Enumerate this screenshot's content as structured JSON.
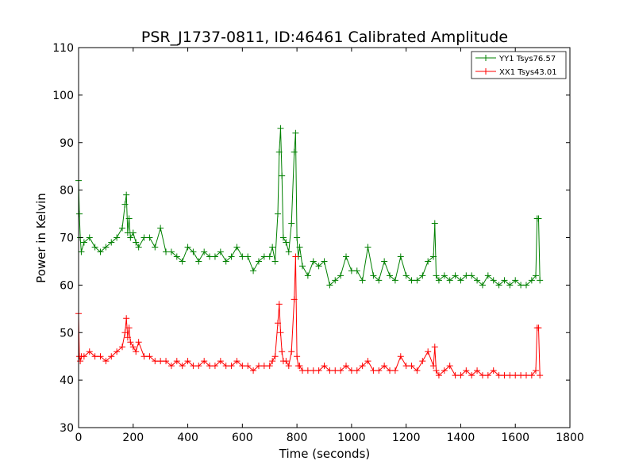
{
  "chart_data": {
    "type": "line",
    "title": "PSR_J1737-0811, ID:46461 Calibrated Amplitude",
    "xlabel": "Time (seconds)",
    "ylabel": "Power in Kelvin",
    "xlim": [
      0,
      1800
    ],
    "ylim": [
      30,
      110
    ],
    "xticks": [
      0,
      200,
      400,
      600,
      800,
      1000,
      1200,
      1400,
      1600,
      1800
    ],
    "yticks": [
      30,
      40,
      50,
      60,
      70,
      80,
      90,
      100,
      110
    ],
    "grid": false,
    "legend_position": "top-right",
    "marker": "plus",
    "series": [
      {
        "name": "YY1 Tsys76.57",
        "color": "#008000",
        "x": [
          0,
          3,
          6,
          10,
          20,
          40,
          60,
          80,
          100,
          120,
          140,
          160,
          170,
          175,
          180,
          185,
          190,
          200,
          210,
          220,
          240,
          260,
          280,
          300,
          320,
          340,
          360,
          380,
          400,
          420,
          440,
          460,
          480,
          500,
          520,
          540,
          560,
          580,
          600,
          620,
          640,
          660,
          680,
          700,
          710,
          720,
          730,
          735,
          740,
          745,
          750,
          760,
          770,
          780,
          790,
          795,
          800,
          805,
          810,
          820,
          840,
          860,
          880,
          900,
          920,
          940,
          960,
          980,
          1000,
          1020,
          1040,
          1060,
          1080,
          1100,
          1120,
          1140,
          1160,
          1180,
          1200,
          1220,
          1240,
          1260,
          1280,
          1300,
          1305,
          1310,
          1320,
          1340,
          1360,
          1380,
          1400,
          1420,
          1440,
          1460,
          1480,
          1500,
          1520,
          1540,
          1560,
          1580,
          1600,
          1620,
          1640,
          1660,
          1675,
          1680,
          1685,
          1690
        ],
        "y": [
          82,
          75,
          70,
          67,
          69,
          70,
          68,
          67,
          68,
          69,
          70,
          72,
          77,
          79,
          71,
          74,
          70,
          71,
          69,
          68,
          70,
          70,
          68,
          72,
          67,
          67,
          66,
          65,
          68,
          67,
          65,
          67,
          66,
          66,
          67,
          65,
          66,
          68,
          66,
          66,
          63,
          65,
          66,
          66,
          68,
          65,
          75,
          88,
          93,
          83,
          70,
          69,
          67,
          73,
          88,
          92,
          70,
          66,
          68,
          64,
          62,
          65,
          64,
          65,
          60,
          61,
          62,
          66,
          63,
          63,
          61,
          68,
          62,
          61,
          65,
          62,
          61,
          66,
          62,
          61,
          61,
          62,
          65,
          66,
          73,
          62,
          61,
          62,
          61,
          62,
          61,
          62,
          62,
          61,
          60,
          62,
          61,
          60,
          61,
          60,
          61,
          60,
          60,
          61,
          62,
          74,
          74,
          61
        ]
      },
      {
        "name": "XX1 Tsys43.01",
        "color": "#ff0000",
        "x": [
          0,
          3,
          6,
          10,
          20,
          40,
          60,
          80,
          100,
          120,
          140,
          160,
          170,
          175,
          180,
          185,
          190,
          200,
          210,
          220,
          240,
          260,
          280,
          300,
          320,
          340,
          360,
          380,
          400,
          420,
          440,
          460,
          480,
          500,
          520,
          540,
          560,
          580,
          600,
          620,
          640,
          660,
          680,
          700,
          710,
          720,
          730,
          735,
          740,
          745,
          750,
          760,
          770,
          780,
          790,
          795,
          800,
          805,
          810,
          820,
          840,
          860,
          880,
          900,
          920,
          940,
          960,
          980,
          1000,
          1020,
          1040,
          1060,
          1080,
          1100,
          1120,
          1140,
          1160,
          1180,
          1200,
          1220,
          1240,
          1260,
          1280,
          1300,
          1305,
          1310,
          1320,
          1340,
          1360,
          1380,
          1400,
          1420,
          1440,
          1460,
          1480,
          1500,
          1520,
          1540,
          1560,
          1580,
          1600,
          1620,
          1640,
          1660,
          1675,
          1680,
          1685,
          1690
        ],
        "y": [
          54,
          45,
          44,
          45,
          45,
          46,
          45,
          45,
          44,
          45,
          46,
          47,
          50,
          53,
          49,
          51,
          48,
          47,
          46,
          48,
          45,
          45,
          44,
          44,
          44,
          43,
          44,
          43,
          44,
          43,
          43,
          44,
          43,
          43,
          44,
          43,
          43,
          44,
          43,
          43,
          42,
          43,
          43,
          43,
          44,
          45,
          52,
          56,
          50,
          46,
          44,
          44,
          43,
          46,
          57,
          66,
          45,
          43,
          43,
          42,
          42,
          42,
          42,
          43,
          42,
          42,
          42,
          43,
          42,
          42,
          43,
          44,
          42,
          42,
          43,
          42,
          42,
          45,
          43,
          43,
          42,
          44,
          46,
          43,
          47,
          42,
          41,
          42,
          43,
          41,
          41,
          42,
          41,
          42,
          41,
          41,
          42,
          41,
          41,
          41,
          41,
          41,
          41,
          41,
          42,
          51,
          51,
          41
        ]
      }
    ]
  }
}
